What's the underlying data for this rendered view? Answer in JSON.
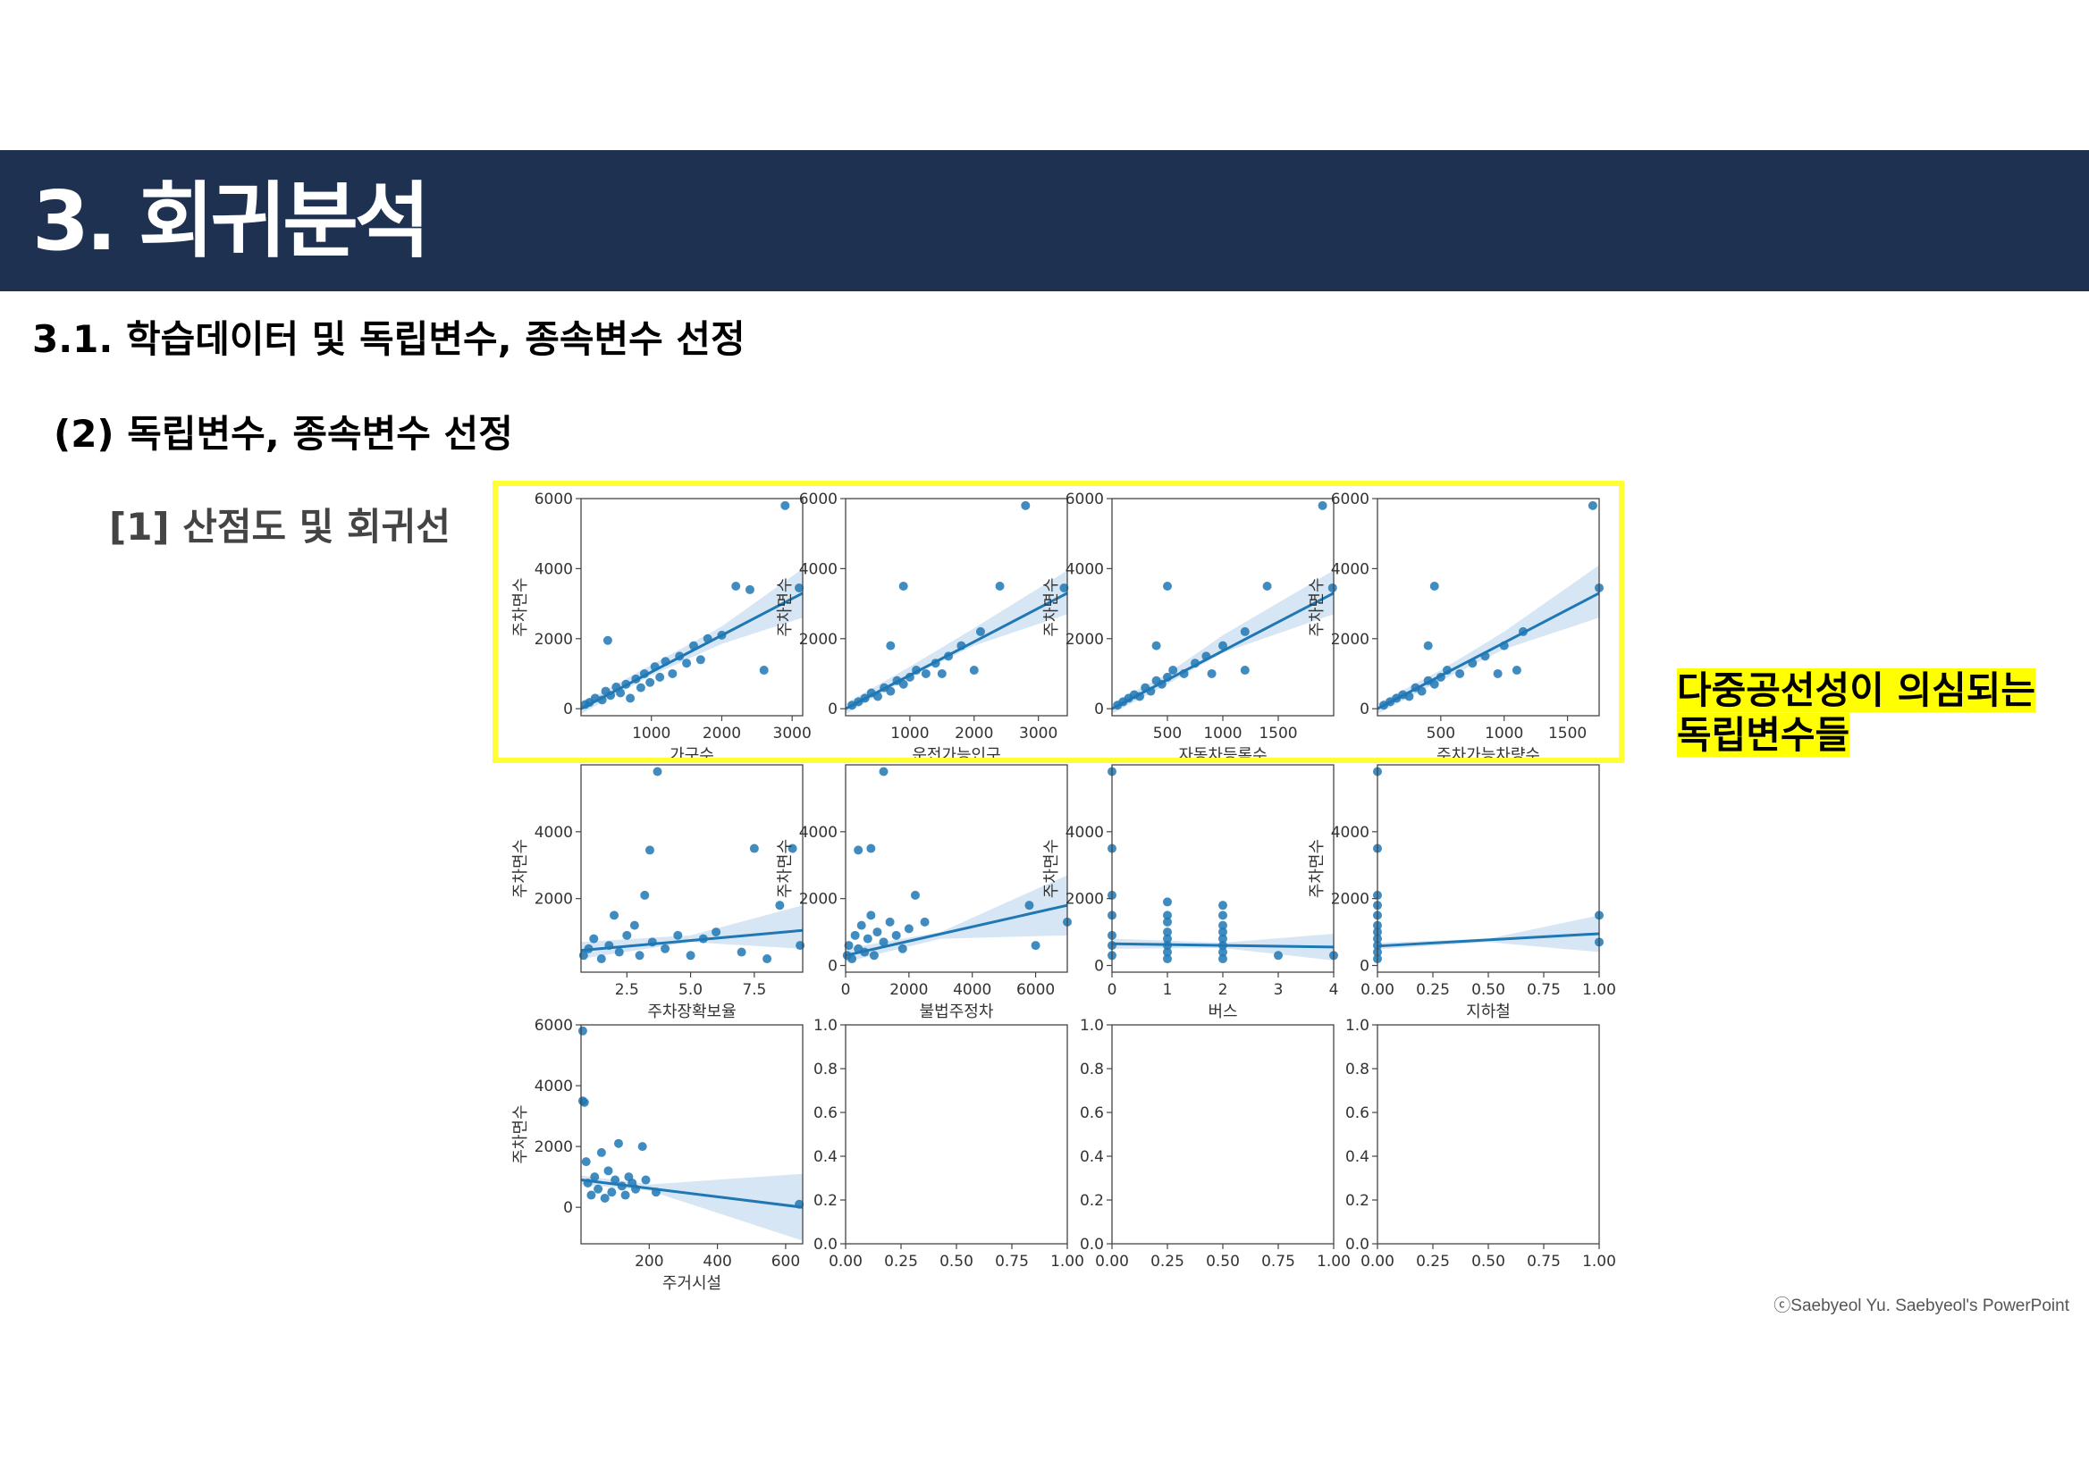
{
  "header": {
    "title": "3. 회귀분석"
  },
  "section": {
    "heading": "3.1. 학습데이터 및 독립변수, 종속변수 선정"
  },
  "subsection": {
    "heading": "(2) 독립변수, 종속변수 선정"
  },
  "item": {
    "heading": "[1] 산점도 및 회귀선"
  },
  "annotation": {
    "line1": "다중공선성이 의심되는",
    "line2": "독립변수들"
  },
  "footer": {
    "credit": "ⓒSaebyeol Yu. Saebyeol's PowerPoint"
  },
  "colors": {
    "banner": "#1f3150",
    "highlight": "#ffff00",
    "points": "#1f77b4",
    "band": "#c6dbef"
  },
  "chart_data": [
    {
      "type": "scatter",
      "xlabel": "가구수",
      "ylabel": "주차면수",
      "xlim": [
        0,
        3150
      ],
      "ylim": [
        -200,
        6000
      ],
      "xticks": [
        1000,
        2000,
        3000
      ],
      "yticks": [
        0,
        2000,
        4000,
        6000
      ],
      "points": [
        [
          60,
          120
        ],
        [
          120,
          180
        ],
        [
          200,
          300
        ],
        [
          300,
          250
        ],
        [
          350,
          500
        ],
        [
          420,
          380
        ],
        [
          500,
          620
        ],
        [
          560,
          450
        ],
        [
          640,
          700
        ],
        [
          700,
          300
        ],
        [
          780,
          850
        ],
        [
          850,
          600
        ],
        [
          900,
          1000
        ],
        [
          980,
          750
        ],
        [
          1050,
          1200
        ],
        [
          1120,
          900
        ],
        [
          1200,
          1350
        ],
        [
          1300,
          1000
        ],
        [
          1400,
          1500
        ],
        [
          1500,
          1300
        ],
        [
          1600,
          1800
        ],
        [
          1700,
          1400
        ],
        [
          1800,
          2000
        ],
        [
          2000,
          2100
        ],
        [
          2200,
          3500
        ],
        [
          2400,
          3400
        ],
        [
          2600,
          1100
        ],
        [
          2900,
          5800
        ],
        [
          3100,
          3450
        ],
        [
          380,
          1950
        ]
      ],
      "fit": {
        "x": [
          0,
          3150
        ],
        "y": [
          0,
          3300
        ]
      },
      "band": [
        [
          0,
          -150,
          150
        ],
        [
          1000,
          950,
          1250
        ],
        [
          2000,
          1850,
          2350
        ],
        [
          3150,
          2600,
          4000
        ]
      ]
    },
    {
      "type": "scatter",
      "xlabel": "운전가능인구",
      "ylabel": "주차면수",
      "xlim": [
        0,
        3450
      ],
      "ylim": [
        -200,
        6000
      ],
      "xticks": [
        1000,
        2000,
        3000
      ],
      "yticks": [
        0,
        2000,
        4000,
        6000
      ],
      "points": [
        [
          100,
          100
        ],
        [
          200,
          200
        ],
        [
          300,
          300
        ],
        [
          400,
          450
        ],
        [
          500,
          350
        ],
        [
          600,
          600
        ],
        [
          700,
          500
        ],
        [
          800,
          800
        ],
        [
          900,
          700
        ],
        [
          1000,
          900
        ],
        [
          1100,
          1100
        ],
        [
          1250,
          1000
        ],
        [
          1400,
          1300
        ],
        [
          1600,
          1500
        ],
        [
          1800,
          1800
        ],
        [
          2100,
          2200
        ],
        [
          2400,
          3500
        ],
        [
          2800,
          5800
        ],
        [
          3400,
          3450
        ],
        [
          900,
          3500
        ],
        [
          700,
          1800
        ],
        [
          1500,
          1000
        ],
        [
          2000,
          1100
        ]
      ],
      "fit": {
        "x": [
          0,
          3450
        ],
        "y": [
          0,
          3300
        ]
      },
      "band": [
        [
          0,
          -150,
          150
        ],
        [
          1000,
          900,
          1200
        ],
        [
          2000,
          1800,
          2300
        ],
        [
          3450,
          2700,
          3950
        ]
      ]
    },
    {
      "type": "scatter",
      "xlabel": "자동차등록수",
      "ylabel": "주차면수",
      "xlim": [
        0,
        2000
      ],
      "ylim": [
        -200,
        6000
      ],
      "xticks": [
        500,
        1000,
        1500
      ],
      "yticks": [
        0,
        2000,
        4000,
        6000
      ],
      "points": [
        [
          50,
          100
        ],
        [
          100,
          200
        ],
        [
          150,
          300
        ],
        [
          200,
          400
        ],
        [
          250,
          350
        ],
        [
          300,
          600
        ],
        [
          350,
          500
        ],
        [
          400,
          800
        ],
        [
          450,
          700
        ],
        [
          500,
          900
        ],
        [
          550,
          1100
        ],
        [
          650,
          1000
        ],
        [
          750,
          1300
        ],
        [
          850,
          1500
        ],
        [
          1000,
          1800
        ],
        [
          1200,
          2200
        ],
        [
          1400,
          3500
        ],
        [
          1900,
          5800
        ],
        [
          1990,
          3450
        ],
        [
          500,
          3500
        ],
        [
          400,
          1800
        ],
        [
          900,
          1000
        ],
        [
          1200,
          1100
        ]
      ],
      "fit": {
        "x": [
          0,
          2000
        ],
        "y": [
          0,
          3300
        ]
      },
      "band": [
        [
          0,
          -150,
          150
        ],
        [
          500,
          700,
          1000
        ],
        [
          1000,
          1600,
          2100
        ],
        [
          2000,
          2700,
          3950
        ]
      ]
    },
    {
      "type": "scatter",
      "xlabel": "주차가능차량수",
      "ylabel": "주차면수",
      "xlim": [
        0,
        1750
      ],
      "ylim": [
        -200,
        6000
      ],
      "xticks": [
        500,
        1000,
        1500
      ],
      "yticks": [
        0,
        2000,
        4000,
        6000
      ],
      "points": [
        [
          50,
          100
        ],
        [
          100,
          200
        ],
        [
          150,
          300
        ],
        [
          200,
          400
        ],
        [
          250,
          350
        ],
        [
          300,
          600
        ],
        [
          350,
          500
        ],
        [
          400,
          800
        ],
        [
          450,
          700
        ],
        [
          500,
          900
        ],
        [
          550,
          1100
        ],
        [
          650,
          1000
        ],
        [
          750,
          1300
        ],
        [
          850,
          1500
        ],
        [
          1000,
          1800
        ],
        [
          1150,
          2200
        ],
        [
          450,
          3500
        ],
        [
          1700,
          5800
        ],
        [
          1750,
          3450
        ],
        [
          400,
          1800
        ],
        [
          950,
          1000
        ],
        [
          1100,
          1100
        ]
      ],
      "fit": {
        "x": [
          0,
          1750
        ],
        "y": [
          0,
          3300
        ]
      },
      "band": [
        [
          0,
          -150,
          150
        ],
        [
          500,
          800,
          1100
        ],
        [
          1000,
          1700,
          2200
        ],
        [
          1750,
          2600,
          4100
        ]
      ]
    },
    {
      "type": "scatter",
      "xlabel": "주차장확보율",
      "ylabel": "주차면수",
      "xlim": [
        0.7,
        9.4
      ],
      "ylim": [
        -200,
        6000
      ],
      "xticks": [
        2.5,
        5.0,
        7.5
      ],
      "yticks": [
        2000,
        4000
      ],
      "points": [
        [
          0.8,
          300
        ],
        [
          1.0,
          500
        ],
        [
          1.2,
          800
        ],
        [
          1.5,
          200
        ],
        [
          1.8,
          600
        ],
        [
          2.0,
          1500
        ],
        [
          2.2,
          400
        ],
        [
          2.5,
          900
        ],
        [
          2.8,
          1200
        ],
        [
          3.0,
          300
        ],
        [
          3.2,
          2100
        ],
        [
          3.5,
          700
        ],
        [
          3.4,
          3450
        ],
        [
          3.7,
          5800
        ],
        [
          4.0,
          500
        ],
        [
          4.5,
          900
        ],
        [
          5.0,
          300
        ],
        [
          5.5,
          800
        ],
        [
          6.0,
          1000
        ],
        [
          7.0,
          400
        ],
        [
          7.5,
          3500
        ],
        [
          8.0,
          200
        ],
        [
          8.5,
          1800
        ],
        [
          9.0,
          3500
        ],
        [
          9.3,
          600
        ]
      ],
      "fit": {
        "x": [
          0.7,
          9.4
        ],
        "y": [
          450,
          1050
        ]
      },
      "band": [
        [
          0.7,
          200,
          700
        ],
        [
          5,
          700,
          900
        ],
        [
          9.4,
          500,
          1800
        ]
      ]
    },
    {
      "type": "scatter",
      "xlabel": "불법주정차",
      "ylabel": "주차면수",
      "xlim": [
        0,
        7000
      ],
      "ylim": [
        -200,
        6000
      ],
      "xticks": [
        0,
        2000,
        4000,
        6000
      ],
      "yticks": [
        0,
        2000,
        4000
      ],
      "points": [
        [
          50,
          300
        ],
        [
          100,
          600
        ],
        [
          200,
          200
        ],
        [
          300,
          900
        ],
        [
          400,
          500
        ],
        [
          500,
          1200
        ],
        [
          600,
          400
        ],
        [
          700,
          800
        ],
        [
          800,
          1500
        ],
        [
          900,
          300
        ],
        [
          1000,
          1000
        ],
        [
          1200,
          700
        ],
        [
          1400,
          1300
        ],
        [
          1600,
          900
        ],
        [
          1800,
          500
        ],
        [
          2000,
          1100
        ],
        [
          2200,
          2100
        ],
        [
          2500,
          1300
        ],
        [
          800,
          3500
        ],
        [
          400,
          3450
        ],
        [
          1200,
          5800
        ],
        [
          5800,
          1800
        ],
        [
          6000,
          600
        ],
        [
          7000,
          1300
        ]
      ],
      "fit": {
        "x": [
          0,
          7000
        ],
        "y": [
          300,
          1800
        ]
      },
      "band": [
        [
          0,
          100,
          500
        ],
        [
          3000,
          800,
          1000
        ],
        [
          7000,
          900,
          2700
        ]
      ]
    },
    {
      "type": "scatter",
      "xlabel": "버스",
      "ylabel": "주차면수",
      "xlim": [
        0,
        4
      ],
      "ylim": [
        -200,
        6000
      ],
      "xticks": [
        0,
        1,
        2,
        3,
        4
      ],
      "yticks": [
        0,
        2000,
        4000
      ],
      "points": [
        [
          0,
          300
        ],
        [
          0,
          600
        ],
        [
          0,
          900
        ],
        [
          0,
          1500
        ],
        [
          0,
          2100
        ],
        [
          0,
          3500
        ],
        [
          0,
          5800
        ],
        [
          1,
          200
        ],
        [
          1,
          400
        ],
        [
          1,
          600
        ],
        [
          1,
          800
        ],
        [
          1,
          1000
        ],
        [
          1,
          1300
        ],
        [
          1,
          1500
        ],
        [
          1,
          1900
        ],
        [
          2,
          200
        ],
        [
          2,
          400
        ],
        [
          2,
          600
        ],
        [
          2,
          800
        ],
        [
          2,
          1000
        ],
        [
          2,
          1200
        ],
        [
          2,
          1500
        ],
        [
          2,
          1800
        ],
        [
          3,
          300
        ],
        [
          4,
          300
        ]
      ],
      "fit": {
        "x": [
          0,
          4
        ],
        "y": [
          650,
          550
        ]
      },
      "band": [
        [
          0,
          500,
          800
        ],
        [
          2,
          520,
          680
        ],
        [
          4,
          150,
          950
        ]
      ]
    },
    {
      "type": "scatter",
      "xlabel": "지하철",
      "ylabel": "주차면수",
      "xlim": [
        0,
        1
      ],
      "ylim": [
        -200,
        6000
      ],
      "xticks": [
        0.0,
        0.25,
        0.5,
        0.75,
        1.0
      ],
      "yticks": [
        0,
        2000,
        4000
      ],
      "points": [
        [
          0,
          200
        ],
        [
          0,
          400
        ],
        [
          0,
          600
        ],
        [
          0,
          800
        ],
        [
          0,
          1000
        ],
        [
          0,
          1200
        ],
        [
          0,
          1500
        ],
        [
          0,
          1800
        ],
        [
          0,
          2100
        ],
        [
          0,
          3500
        ],
        [
          0,
          5800
        ],
        [
          1,
          700
        ],
        [
          1,
          1500
        ]
      ],
      "fit": {
        "x": [
          0,
          1
        ],
        "y": [
          580,
          950
        ]
      },
      "band": [
        [
          0,
          480,
          680
        ],
        [
          0.5,
          700,
          800
        ],
        [
          1,
          400,
          1500
        ]
      ]
    },
    {
      "type": "scatter",
      "xlabel": "주거시설",
      "ylabel": "주차면수",
      "xlim": [
        0,
        650
      ],
      "ylim": [
        -1200,
        6000
      ],
      "xticks": [
        200,
        400,
        600
      ],
      "yticks": [
        0,
        2000,
        4000,
        6000
      ],
      "points": [
        [
          5,
          5800
        ],
        [
          5,
          3500
        ],
        [
          10,
          3450
        ],
        [
          15,
          1500
        ],
        [
          20,
          800
        ],
        [
          30,
          400
        ],
        [
          40,
          1000
        ],
        [
          50,
          600
        ],
        [
          60,
          1800
        ],
        [
          70,
          300
        ],
        [
          80,
          1200
        ],
        [
          90,
          500
        ],
        [
          100,
          900
        ],
        [
          110,
          2100
        ],
        [
          120,
          700
        ],
        [
          130,
          400
        ],
        [
          140,
          1000
        ],
        [
          150,
          800
        ],
        [
          160,
          600
        ],
        [
          180,
          2000
        ],
        [
          190,
          900
        ],
        [
          220,
          500
        ],
        [
          640,
          100
        ]
      ],
      "fit": {
        "x": [
          0,
          650
        ],
        "y": [
          900,
          0
        ]
      },
      "band": [
        [
          0,
          750,
          1050
        ],
        [
          200,
          550,
          750
        ],
        [
          650,
          -1100,
          1100
        ]
      ]
    },
    {
      "type": "scatter",
      "xlabel": "",
      "ylabel": "",
      "xlim": [
        0,
        1
      ],
      "ylim": [
        0,
        1
      ],
      "xticks": [
        0.0,
        0.25,
        0.5,
        0.75,
        1.0
      ],
      "yticks": [
        0.0,
        0.2,
        0.4,
        0.6,
        0.8,
        1.0
      ],
      "points": []
    },
    {
      "type": "scatter",
      "xlabel": "",
      "ylabel": "",
      "xlim": [
        0,
        1
      ],
      "ylim": [
        0,
        1
      ],
      "xticks": [
        0.0,
        0.25,
        0.5,
        0.75,
        1.0
      ],
      "yticks": [
        0.0,
        0.2,
        0.4,
        0.6,
        0.8,
        1.0
      ],
      "points": []
    },
    {
      "type": "scatter",
      "xlabel": "",
      "ylabel": "",
      "xlim": [
        0,
        1
      ],
      "ylim": [
        0,
        1
      ],
      "xticks": [
        0.0,
        0.25,
        0.5,
        0.75,
        1.0
      ],
      "yticks": [
        0.0,
        0.2,
        0.4,
        0.6,
        0.8,
        1.0
      ],
      "points": []
    }
  ]
}
